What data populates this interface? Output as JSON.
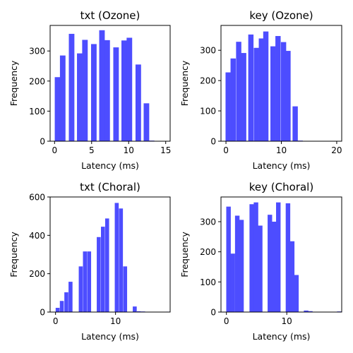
{
  "chart_data": [
    {
      "type": "bar",
      "title": "txt (Ozone)",
      "xlabel": "Latency (ms)",
      "ylabel": "Frequency",
      "xlim": [
        -0.6,
        15.6
      ],
      "ylim": [
        0,
        385
      ],
      "xticks": [
        0,
        5,
        10,
        15
      ],
      "yticks": [
        0,
        100,
        200,
        300
      ],
      "color": "#4d4dff",
      "bar_width": 0.75,
      "bins": [
        {
          "x": 0.4,
          "value": 213
        },
        {
          "x": 1.1,
          "value": 285
        },
        {
          "x": 2.3,
          "value": 357
        },
        {
          "x": 3.4,
          "value": 292
        },
        {
          "x": 4.1,
          "value": 337
        },
        {
          "x": 5.3,
          "value": 323
        },
        {
          "x": 6.4,
          "value": 369
        },
        {
          "x": 7.1,
          "value": 336
        },
        {
          "x": 8.3,
          "value": 312
        },
        {
          "x": 9.4,
          "value": 335
        },
        {
          "x": 10.1,
          "value": 344
        },
        {
          "x": 11.3,
          "value": 255
        },
        {
          "x": 12.4,
          "value": 126
        },
        {
          "x": 13.1,
          "value": 2
        }
      ]
    },
    {
      "type": "bar",
      "title": "key (Ozone)",
      "xlabel": "Latency (ms)",
      "ylabel": "Frequency",
      "xlim": [
        -0.9,
        20.9
      ],
      "ylim": [
        0,
        382
      ],
      "xticks": [
        0,
        10,
        20
      ],
      "yticks": [
        0,
        100,
        200,
        300
      ],
      "color": "#4d4dff",
      "bar_width": 0.95,
      "bins": [
        {
          "x": 0.4,
          "value": 227
        },
        {
          "x": 1.3,
          "value": 273
        },
        {
          "x": 2.3,
          "value": 328
        },
        {
          "x": 3.2,
          "value": 291
        },
        {
          "x": 4.5,
          "value": 352
        },
        {
          "x": 5.5,
          "value": 308
        },
        {
          "x": 6.4,
          "value": 339
        },
        {
          "x": 7.2,
          "value": 362
        },
        {
          "x": 8.5,
          "value": 313
        },
        {
          "x": 9.4,
          "value": 347
        },
        {
          "x": 10.4,
          "value": 327
        },
        {
          "x": 11.2,
          "value": 298
        },
        {
          "x": 12.5,
          "value": 115
        },
        {
          "x": 13.4,
          "value": 2
        },
        {
          "x": 14.4,
          "value": 1
        }
      ]
    },
    {
      "type": "bar",
      "title": "txt (Choral)",
      "xlabel": "Latency (ms)",
      "ylabel": "Frequency",
      "xlim": [
        -0.9,
        19.1
      ],
      "ylim": [
        0,
        600
      ],
      "xticks": [
        0,
        10
      ],
      "yticks": [
        0,
        200,
        400,
        600
      ],
      "color": "#4d4dff",
      "bar_width": 0.66,
      "bins": [
        {
          "x": 0.35,
          "value": 22
        },
        {
          "x": 1.05,
          "value": 58
        },
        {
          "x": 1.8,
          "value": 103
        },
        {
          "x": 2.5,
          "value": 158
        },
        {
          "x": 4.2,
          "value": 238
        },
        {
          "x": 4.9,
          "value": 316
        },
        {
          "x": 5.6,
          "value": 316
        },
        {
          "x": 7.2,
          "value": 391
        },
        {
          "x": 7.9,
          "value": 445
        },
        {
          "x": 8.6,
          "value": 488
        },
        {
          "x": 10.2,
          "value": 569
        },
        {
          "x": 10.9,
          "value": 540
        },
        {
          "x": 11.6,
          "value": 238
        },
        {
          "x": 13.2,
          "value": 29
        },
        {
          "x": 13.9,
          "value": 4
        },
        {
          "x": 14.6,
          "value": 3
        },
        {
          "x": 18.7,
          "value": 2
        }
      ]
    },
    {
      "type": "bar",
      "title": "key (Choral)",
      "xlabel": "Latency (ms)",
      "ylabel": "Frequency",
      "xlim": [
        -0.9,
        19.1
      ],
      "ylim": [
        0,
        382
      ],
      "xticks": [
        0,
        10
      ],
      "yticks": [
        0,
        100,
        200,
        300
      ],
      "color": "#4d4dff",
      "bar_width": 0.75,
      "bins": [
        {
          "x": 0.35,
          "value": 350
        },
        {
          "x": 1.05,
          "value": 194
        },
        {
          "x": 1.8,
          "value": 320
        },
        {
          "x": 2.5,
          "value": 306
        },
        {
          "x": 4.2,
          "value": 358
        },
        {
          "x": 4.9,
          "value": 364
        },
        {
          "x": 5.6,
          "value": 287
        },
        {
          "x": 7.2,
          "value": 323
        },
        {
          "x": 7.9,
          "value": 300
        },
        {
          "x": 8.6,
          "value": 364
        },
        {
          "x": 10.2,
          "value": 361
        },
        {
          "x": 10.9,
          "value": 235
        },
        {
          "x": 11.6,
          "value": 123
        },
        {
          "x": 13.2,
          "value": 5
        },
        {
          "x": 13.9,
          "value": 3
        },
        {
          "x": 18.7,
          "value": 2
        }
      ]
    }
  ]
}
